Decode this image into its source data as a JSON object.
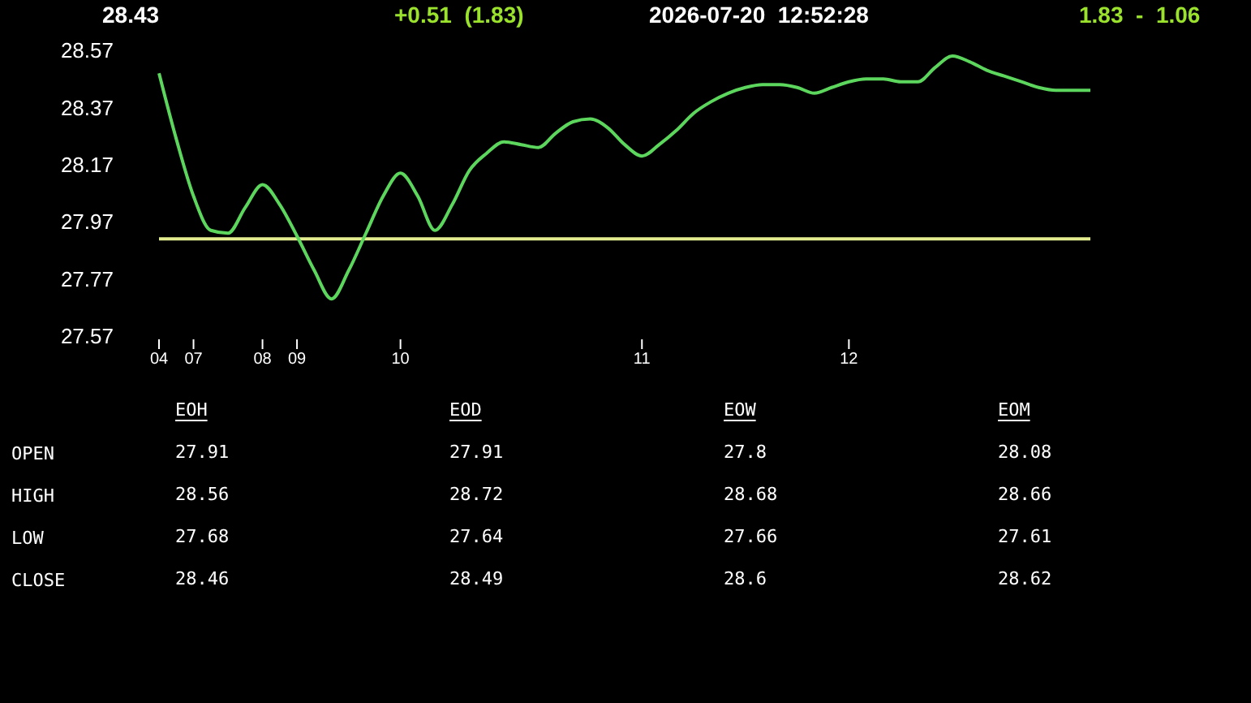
{
  "chart_data": [
    {
      "type": "line",
      "annotations": [
        "28.43",
        "+0.51  (1.83)",
        "2026-07-20  12:52:28",
        "1.83  -  1.06"
      ],
      "categories": [
        "04",
        null,
        "07",
        null,
        null,
        null,
        "08",
        null,
        "09",
        null,
        null,
        null,
        null,
        null,
        "10",
        null,
        null,
        null,
        null,
        null,
        null,
        null,
        null,
        null,
        null,
        null,
        null,
        null,
        "11",
        null,
        null,
        null,
        null,
        null,
        null,
        null,
        null,
        null,
        null,
        null,
        "12",
        null,
        null,
        null,
        null,
        null,
        null,
        null,
        null,
        null,
        null,
        null,
        null,
        null,
        null
      ],
      "series": [
        {
          "color": "#5cd65c",
          "values": [
            28.49,
            28.26,
            28.06,
            27.94,
            27.93,
            28.02,
            28.1,
            28.03,
            27.92,
            27.8,
            27.7,
            27.8,
            27.93,
            28.06,
            28.14,
            28.06,
            27.94,
            28.03,
            28.15,
            28.21,
            28.25,
            28.24,
            28.23,
            28.28,
            28.32,
            28.33,
            28.3,
            28.24,
            28.2,
            28.24,
            28.29,
            28.35,
            28.39,
            28.42,
            28.44,
            28.45,
            28.45,
            28.44,
            28.42,
            28.44,
            28.46,
            28.47,
            28.47,
            28.46,
            28.46,
            28.51,
            28.55,
            28.53,
            28.5,
            28.48,
            28.46,
            28.44,
            28.43,
            28.43,
            28.43
          ]
        }
      ],
      "ylim": [
        27.57,
        28.57
      ],
      "yticks": [
        27.57,
        27.77,
        27.97,
        28.17,
        28.37,
        28.57
      ],
      "ref_lines": [
        {
          "axis": "y",
          "value": 27.91,
          "color": "#e3ec8f"
        }
      ],
      "grid": false,
      "legend": false,
      "marker": "none",
      "line_style": "solid"
    },
    {
      "type": "heatmap",
      "categories": [
        "EOH",
        "EOD",
        "EOW",
        "EOM"
      ],
      "y_categories": [
        "OPEN",
        "HIGH",
        "LOW",
        "CLOSE"
      ],
      "cells": [
        [
          27.91,
          27.91,
          27.8,
          28.08
        ],
        [
          28.56,
          28.72,
          28.68,
          28.66
        ],
        [
          27.68,
          27.64,
          27.66,
          27.61
        ],
        [
          28.46,
          28.49,
          28.6,
          28.62
        ]
      ],
      "data_labels": true
    }
  ]
}
